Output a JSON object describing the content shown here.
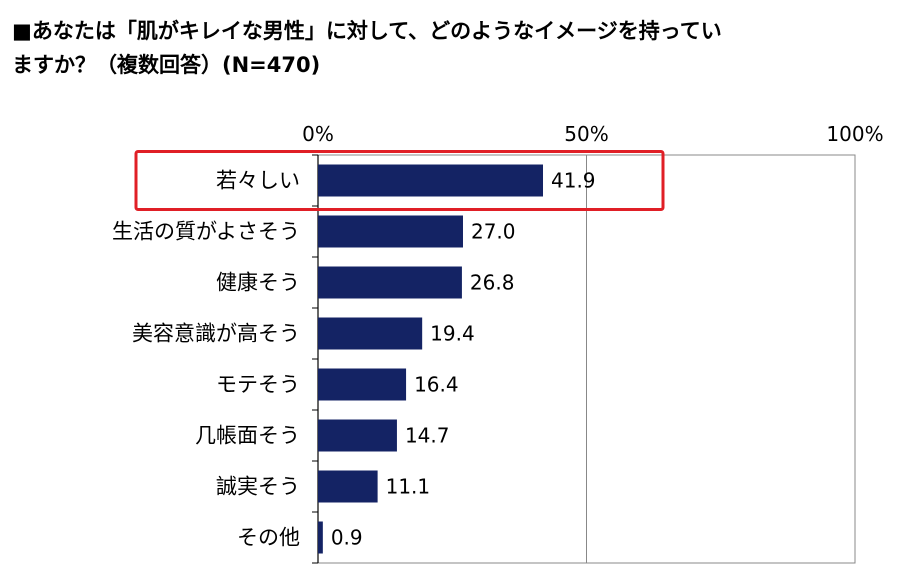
{
  "chart_data": {
    "type": "bar",
    "orientation": "horizontal",
    "title_lines": [
      "■あなたは「肌がキレイな男性」に対して、どのようなイメージを持ってい",
      "ますか？（複数回答）(N=470)"
    ],
    "categories": [
      "若々しい",
      "生活の質がよさそう",
      "健康そう",
      "美容意識が高そう",
      "モテそう",
      "几帳面そう",
      "誠実そう",
      "その他"
    ],
    "values": [
      41.9,
      27.0,
      26.8,
      19.4,
      16.4,
      14.7,
      11.1,
      0.9
    ],
    "value_labels": [
      "41.9",
      "27.0",
      "26.8",
      "19.4",
      "16.4",
      "14.7",
      "11.1",
      "0.9"
    ],
    "xlim": [
      0,
      100
    ],
    "x_ticks": [
      {
        "value": 0,
        "label": "0%"
      },
      {
        "value": 50,
        "label": "50%"
      },
      {
        "value": 100,
        "label": "100%"
      }
    ],
    "grid": "vertical at 50% and 100%",
    "highlight": {
      "category": "若々しい",
      "color": "#e01f26"
    },
    "colors": {
      "bar": "#142364",
      "grid": "#888888",
      "axis": "#000000"
    }
  }
}
